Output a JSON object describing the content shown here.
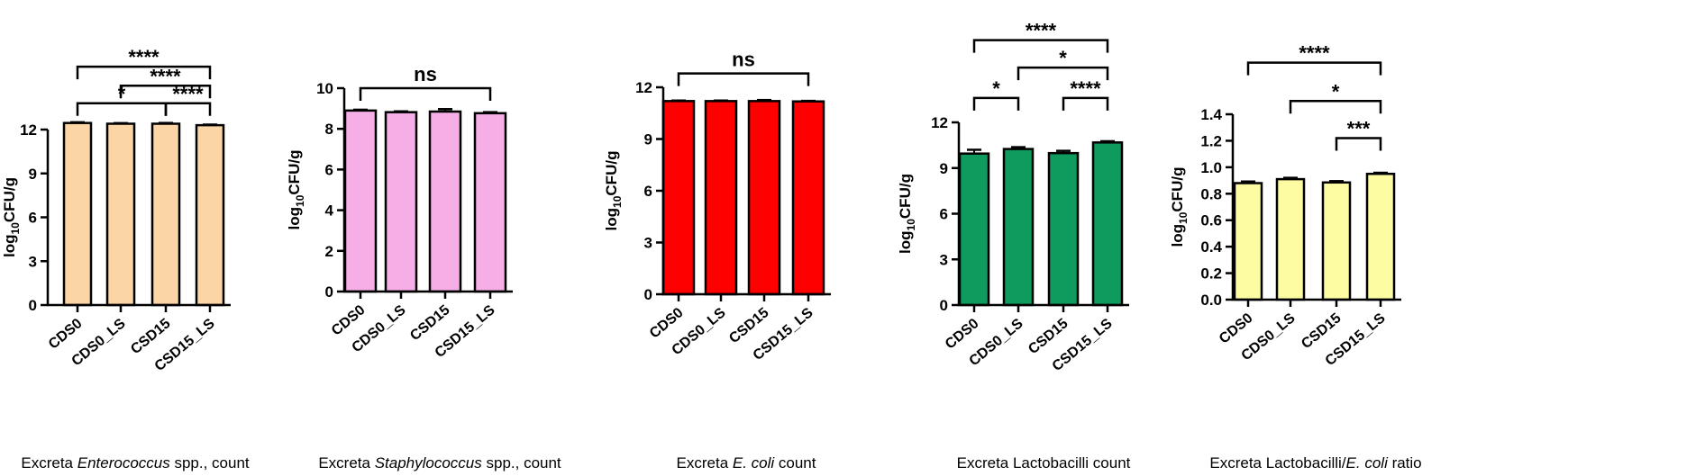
{
  "colors": {
    "enterococcus": "#FCD5A6",
    "staphylococcus": "#F5AEE6",
    "ecoli": "#FF0000",
    "lactobacilli": "#0F9B5E",
    "ratio": "#FDFCA3",
    "stroke": "#000000"
  },
  "chart_data": [
    {
      "type": "bar",
      "categories": [
        "CDS0",
        "CDS0_LS",
        "CSD15",
        "CSD15_LS"
      ],
      "values": [
        12.45,
        12.4,
        12.4,
        12.3
      ],
      "errors": [
        0.05,
        0.04,
        0.05,
        0.04
      ],
      "ylabel_main": "log",
      "ylabel_sub": "10",
      "ylabel_tail": "CFU/g",
      "xlabel_parts": [
        {
          "text": "Excreta ",
          "italic": false
        },
        {
          "text": "Enterococcus",
          "italic": true
        },
        {
          "text": " spp., count",
          "italic": false
        }
      ],
      "ylim": [
        0,
        13.5
      ],
      "yticks": [
        0,
        3,
        6,
        9,
        12
      ],
      "ytick_labels": [
        "0",
        "3",
        "6",
        "9",
        "12"
      ],
      "color_key": "enterococcus",
      "significance": [
        {
          "from": 0,
          "to": 3,
          "label": "****",
          "level": 16.3
        },
        {
          "from": 1,
          "to": 3,
          "label": "****",
          "level": 15.0
        },
        {
          "from": 0,
          "to": 2,
          "label": "*",
          "level": 13.8
        },
        {
          "from": 2,
          "to": 3,
          "label": "****",
          "level": 13.8
        }
      ]
    },
    {
      "type": "bar",
      "categories": [
        "CDS0",
        "CDS0_LS",
        "CSD15",
        "CSD15_LS"
      ],
      "values": [
        8.9,
        8.82,
        8.85,
        8.77
      ],
      "errors": [
        0.04,
        0.04,
        0.12,
        0.05
      ],
      "ylabel_main": "log",
      "ylabel_sub": "10",
      "ylabel_tail": "CFU/g",
      "xlabel_parts": [
        {
          "text": "Excreta ",
          "italic": false
        },
        {
          "text": "Staphylococcus",
          "italic": true
        },
        {
          "text": " spp., count",
          "italic": false
        }
      ],
      "ylim": [
        0,
        10
      ],
      "yticks": [
        0,
        2,
        4,
        6,
        8,
        10
      ],
      "ytick_labels": [
        "0",
        "2",
        "4",
        "6",
        "8",
        "10"
      ],
      "color_key": "staphylococcus",
      "significance": [
        {
          "from": 0,
          "to": 3,
          "label": "ns",
          "level": 10.0
        }
      ]
    },
    {
      "type": "bar",
      "categories": [
        "CDS0",
        "CDS0_LS",
        "CSD15",
        "CSD15_LS"
      ],
      "values": [
        11.2,
        11.2,
        11.2,
        11.18
      ],
      "errors": [
        0.03,
        0.03,
        0.06,
        0.03
      ],
      "ylabel_main": "log",
      "ylabel_sub": "10",
      "ylabel_tail": "CFU/g",
      "xlabel_parts": [
        {
          "text": "Excreta ",
          "italic": false
        },
        {
          "text": "E. coli",
          "italic": true
        },
        {
          "text": " count",
          "italic": false
        }
      ],
      "ylim": [
        0,
        12
      ],
      "yticks": [
        0,
        3,
        6,
        9,
        12
      ],
      "ytick_labels": [
        "0",
        "3",
        "6",
        "9",
        "12"
      ],
      "color_key": "ecoli",
      "significance": [
        {
          "from": 0,
          "to": 3,
          "label": "ns",
          "level": 12.8
        }
      ]
    },
    {
      "type": "bar",
      "categories": [
        "CDS0",
        "CDS0_LS",
        "CSD15",
        "CSD15_LS"
      ],
      "values": [
        9.95,
        10.25,
        9.98,
        10.68
      ],
      "errors": [
        0.25,
        0.12,
        0.15,
        0.08
      ],
      "ylabel_main": "log",
      "ylabel_sub": "10",
      "ylabel_tail": "CFU/g",
      "xlabel_parts": [
        {
          "text": "Excreta Lactobacilli count",
          "italic": false
        }
      ],
      "ylim": [
        0,
        13
      ],
      "yticks": [
        0,
        3,
        6,
        9,
        12
      ],
      "ytick_labels": [
        "0",
        "3",
        "6",
        "9",
        "12"
      ],
      "color_key": "lactobacilli",
      "significance": [
        {
          "from": 0,
          "to": 3,
          "label": "****",
          "level": 17.4
        },
        {
          "from": 1,
          "to": 3,
          "label": "*",
          "level": 15.6
        },
        {
          "from": 0,
          "to": 1,
          "label": "*",
          "level": 13.6
        },
        {
          "from": 2,
          "to": 3,
          "label": "****",
          "level": 13.6
        }
      ]
    },
    {
      "type": "bar",
      "categories": [
        "CDS0",
        "CDS0_LS",
        "CSD15",
        "CSD15_LS"
      ],
      "values": [
        0.88,
        0.91,
        0.885,
        0.95
      ],
      "errors": [
        0.012,
        0.01,
        0.01,
        0.008
      ],
      "ylabel_main": "log",
      "ylabel_sub": "10",
      "ylabel_tail": "CFU/g",
      "xlabel_parts": [
        {
          "text": "Excreta Lactobacilli/",
          "italic": false
        },
        {
          "text": "E. coli",
          "italic": true
        },
        {
          "text": " ratio",
          "italic": false
        }
      ],
      "ylim": [
        0,
        1.4
      ],
      "yticks": [
        0,
        0.2,
        0.4,
        0.6,
        0.8,
        1.0,
        1.2,
        1.4
      ],
      "ytick_labels": [
        "0.0",
        "0.2",
        "0.4",
        "0.6",
        "0.8",
        "1.0",
        "1.2",
        "1.4"
      ],
      "color_key": "ratio",
      "significance": [
        {
          "from": 0,
          "to": 3,
          "label": "****",
          "level": 1.79
        },
        {
          "from": 1,
          "to": 3,
          "label": "*",
          "level": 1.5
        },
        {
          "from": 2,
          "to": 3,
          "label": "***",
          "level": 1.22
        }
      ]
    }
  ]
}
